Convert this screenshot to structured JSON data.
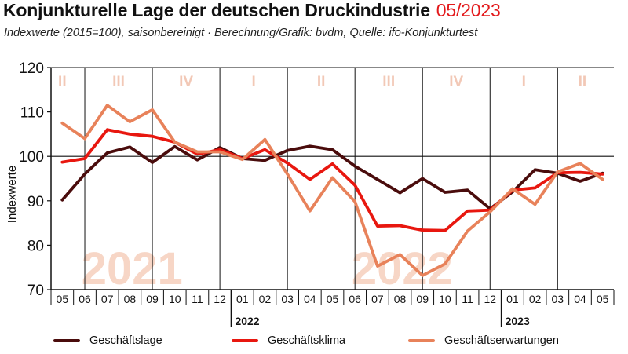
{
  "title": "Konjunkturelle Lage der deutschen Druckindustrie",
  "title_date": "05/2023",
  "subtitle": "Indexwerte (2015=100), saisonbereinigt · Berechnung/Grafik: bvdm, Quelle: ifo-Konjunkturtest",
  "colors": {
    "geschaeftslage": "#4a0c0c",
    "geschaeftsklima": "#e8170f",
    "geschaeftserwartungen": "#e8825a",
    "quarter_labels": "#f2c8b6",
    "year_watermark": "#f7d6c6"
  },
  "chart_data": {
    "type": "line",
    "x_tick_labels": [
      "05",
      "06",
      "07",
      "08",
      "09",
      "10",
      "11",
      "12",
      "01",
      "02",
      "03",
      "04",
      "05",
      "06",
      "07",
      "08",
      "09",
      "10",
      "11",
      "12",
      "01",
      "02",
      "03",
      "04",
      "05"
    ],
    "year_labels": [
      {
        "label": "2022",
        "start_index": 8
      },
      {
        "label": "2023",
        "start_index": 20
      }
    ],
    "quarter_labels": [
      {
        "label": "II",
        "center_index": 0.5
      },
      {
        "label": "III",
        "center_index": 3
      },
      {
        "label": "IV",
        "center_index": 6
      },
      {
        "label": "I",
        "center_index": 9
      },
      {
        "label": "II",
        "center_index": 12
      },
      {
        "label": "III",
        "center_index": 15
      },
      {
        "label": "IV",
        "center_index": 18
      },
      {
        "label": "I",
        "center_index": 21
      },
      {
        "label": "II",
        "center_index": 23.6
      }
    ],
    "quarter_boundaries": [
      1.5,
      4.5,
      7.5,
      10.5,
      13.5,
      16.5,
      19.5,
      22.5
    ],
    "year_watermarks": [
      {
        "label": "2021",
        "center_index": 3.6
      },
      {
        "label": "2022",
        "center_index": 15.6
      }
    ],
    "ylabel": "Indexwerte",
    "ylim": [
      70,
      120
    ],
    "y_ticks": [
      70,
      80,
      90,
      100,
      110,
      120
    ],
    "reference_line": 100,
    "series": [
      {
        "name": "Geschäftslage",
        "color_key": "geschaeftslage",
        "values": [
          90.2,
          96.0,
          100.8,
          102.1,
          98.6,
          102.2,
          99.2,
          102.0,
          99.5,
          99.1,
          101.3,
          102.3,
          101.5,
          97.8,
          94.8,
          91.8,
          95.0,
          91.9,
          92.4,
          88.2,
          92.0,
          97.0,
          96.2,
          94.4,
          96.2
        ]
      },
      {
        "name": "Geschäftsklima",
        "color_key": "geschaeftsklima",
        "values": [
          98.7,
          99.5,
          106.0,
          105.0,
          104.5,
          103.2,
          100.5,
          101.5,
          99.5,
          101.5,
          98.5,
          94.8,
          98.3,
          93.5,
          84.3,
          84.4,
          83.4,
          83.3,
          87.7,
          87.9,
          92.4,
          92.9,
          96.3,
          96.4,
          96.0
        ]
      },
      {
        "name": "Geschäftserwartungen",
        "color_key": "geschaeftserwartungen",
        "values": [
          107.5,
          104.0,
          111.5,
          107.8,
          110.5,
          103.2,
          101.0,
          101.0,
          99.3,
          103.8,
          96.0,
          87.7,
          95.2,
          89.8,
          75.3,
          77.9,
          73.2,
          75.8,
          83.2,
          87.5,
          92.7,
          89.2,
          96.5,
          98.4,
          94.8
        ]
      }
    ]
  }
}
